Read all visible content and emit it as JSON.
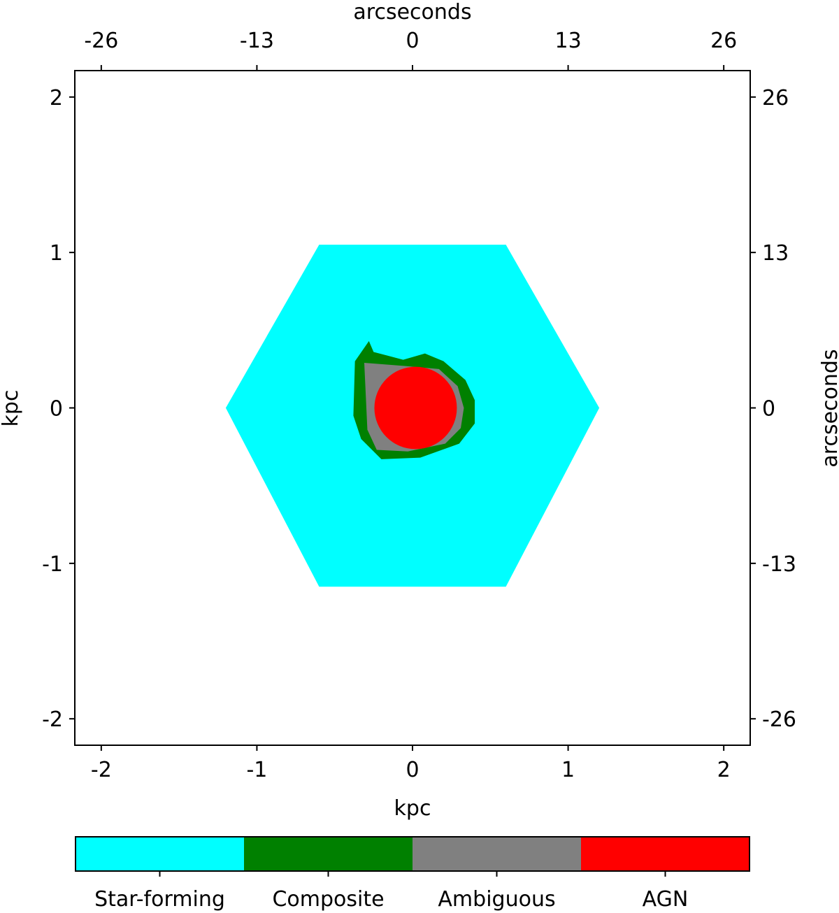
{
  "chart_data": {
    "type": "heatmap",
    "title": "",
    "xlabel": "kpc",
    "ylabel": "kpc",
    "top_label": "arcseconds",
    "right_label": "arcseconds",
    "xlim": [
      -2.17,
      2.17
    ],
    "ylim": [
      -2.17,
      2.17
    ],
    "x_ticks": [
      -2,
      -1,
      0,
      1,
      2
    ],
    "x_tick_labels": [
      "-2",
      "-1",
      "0",
      "1",
      "2"
    ],
    "y_ticks": [
      -2,
      -1,
      0,
      1,
      2
    ],
    "y_tick_labels": [
      "-2",
      "-1",
      "0",
      "1",
      "2"
    ],
    "top_ticks": [
      -2,
      -1,
      0,
      1,
      2
    ],
    "top_tick_labels": [
      "-26",
      "-13",
      "0",
      "13",
      "26"
    ],
    "right_ticks": [
      -2,
      -1,
      0,
      1,
      2
    ],
    "right_tick_labels": [
      "-26",
      "-13",
      "0",
      "13",
      "26"
    ],
    "grid": false,
    "categories": [
      "Star-forming",
      "Composite",
      "Ambiguous",
      "AGN"
    ],
    "category_colors": [
      "#00ffff",
      "#008000",
      "#808080",
      "#ff0000"
    ],
    "regions": {
      "star_forming": {
        "shape": "hexagon",
        "center": [
          0,
          0
        ],
        "x_extent": [
          -1.2,
          1.2
        ],
        "y_extent": [
          -1.15,
          1.05
        ]
      },
      "composite": {
        "shape": "ring",
        "outer": [
          [
            -0.37,
            0.3
          ],
          [
            -0.28,
            0.43
          ],
          [
            -0.25,
            0.36
          ],
          [
            -0.06,
            0.31
          ],
          [
            0.08,
            0.35
          ],
          [
            0.2,
            0.3
          ],
          [
            0.34,
            0.18
          ],
          [
            0.4,
            0.05
          ],
          [
            0.4,
            -0.1
          ],
          [
            0.3,
            -0.23
          ],
          [
            0.05,
            -0.32
          ],
          [
            -0.2,
            -0.33
          ],
          [
            -0.33,
            -0.2
          ],
          [
            -0.38,
            -0.05
          ]
        ]
      },
      "ambiguous": {
        "shape": "ring",
        "outer": [
          [
            -0.31,
            0.29
          ],
          [
            -0.05,
            0.27
          ],
          [
            0.17,
            0.25
          ],
          [
            0.29,
            0.14
          ],
          [
            0.33,
            0.0
          ],
          [
            0.31,
            -0.13
          ],
          [
            0.21,
            -0.23
          ],
          [
            -0.03,
            -0.28
          ],
          [
            -0.23,
            -0.27
          ],
          [
            -0.29,
            -0.14
          ]
        ]
      },
      "agn": {
        "shape": "disk",
        "center": [
          0.02,
          0.0
        ],
        "radius": 0.265
      }
    },
    "colorbar": {
      "labels": [
        "Star-forming",
        "Composite",
        "Ambiguous",
        "AGN"
      ]
    }
  }
}
